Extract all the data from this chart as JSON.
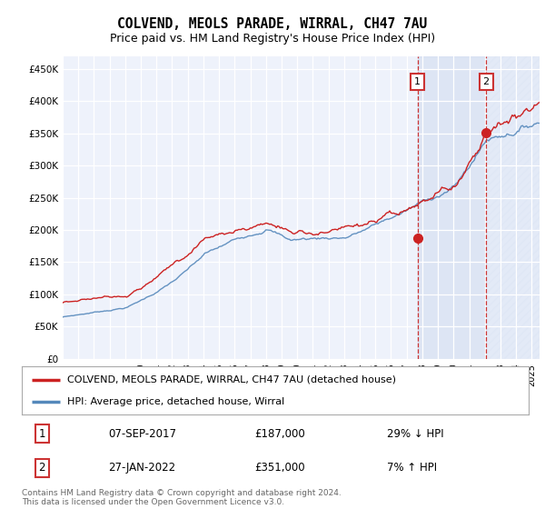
{
  "title": "COLVEND, MEOLS PARADE, WIRRAL, CH47 7AU",
  "subtitle": "Price paid vs. HM Land Registry's House Price Index (HPI)",
  "ylim": [
    0,
    470000
  ],
  "yticks": [
    0,
    50000,
    100000,
    150000,
    200000,
    250000,
    300000,
    350000,
    400000,
    450000
  ],
  "ytick_labels": [
    "£0",
    "£50K",
    "£100K",
    "£150K",
    "£200K",
    "£250K",
    "£300K",
    "£350K",
    "£400K",
    "£450K"
  ],
  "xlim_start": 1995.0,
  "xlim_end": 2025.5,
  "background_color": "#ffffff",
  "plot_bg_color": "#eef2fb",
  "grid_color": "#ffffff",
  "hpi_color": "#5588bb",
  "price_color": "#cc2222",
  "sale1_date": 2017.69,
  "sale1_price": 187000,
  "sale2_date": 2022.08,
  "sale2_price": 351000,
  "legend_line1": "COLVEND, MEOLS PARADE, WIRRAL, CH47 7AU (detached house)",
  "legend_line2": "HPI: Average price, detached house, Wirral",
  "table_row1": [
    "1",
    "07-SEP-2017",
    "£187,000",
    "29% ↓ HPI"
  ],
  "table_row2": [
    "2",
    "27-JAN-2022",
    "£351,000",
    "7% ↑ HPI"
  ],
  "footnote": "Contains HM Land Registry data © Crown copyright and database right 2024.\nThis data is licensed under the Open Government Licence v3.0."
}
